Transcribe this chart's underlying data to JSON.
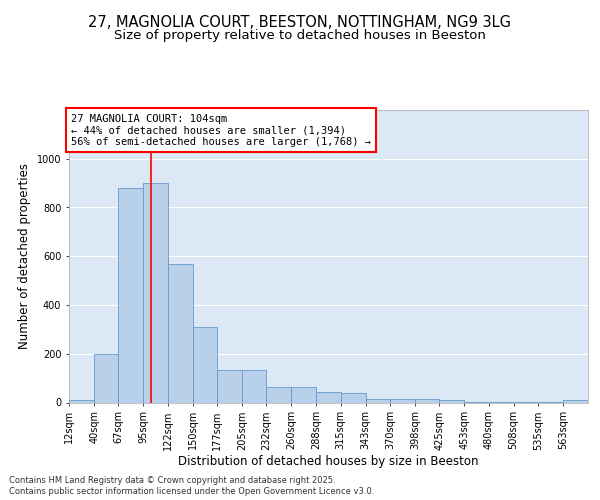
{
  "title1": "27, MAGNOLIA COURT, BEESTON, NOTTINGHAM, NG9 3LG",
  "title2": "Size of property relative to detached houses in Beeston",
  "xlabel": "Distribution of detached houses by size in Beeston",
  "ylabel": "Number of detached properties",
  "footer1": "Contains HM Land Registry data © Crown copyright and database right 2025.",
  "footer2": "Contains public sector information licensed under the Open Government Licence v3.0.",
  "annotation_line1": "27 MAGNOLIA COURT: 104sqm",
  "annotation_line2": "← 44% of detached houses are smaller (1,394)",
  "annotation_line3": "56% of semi-detached houses are larger (1,768) →",
  "bar_edges": [
    12,
    40,
    67,
    95,
    122,
    150,
    177,
    205,
    232,
    260,
    288,
    315,
    343,
    370,
    398,
    425,
    453,
    480,
    508,
    535,
    563
  ],
  "bar_heights": [
    10,
    200,
    880,
    900,
    570,
    310,
    135,
    135,
    65,
    65,
    45,
    40,
    15,
    15,
    15,
    10,
    1,
    1,
    1,
    1,
    10
  ],
  "bar_color": "#b8d0ea",
  "bar_edgecolor": "#6699cc",
  "red_line_x": 104,
  "ylim_max": 1200,
  "yticks": [
    0,
    200,
    400,
    600,
    800,
    1000
  ],
  "bg_color": "#dce8f5",
  "grid_color": "#ffffff",
  "title_fontsize": 10.5,
  "subtitle_fontsize": 9.5,
  "axis_label_fontsize": 8.5,
  "tick_fontsize": 7,
  "ann_fontsize": 7.5,
  "footer_fontsize": 6.0
}
